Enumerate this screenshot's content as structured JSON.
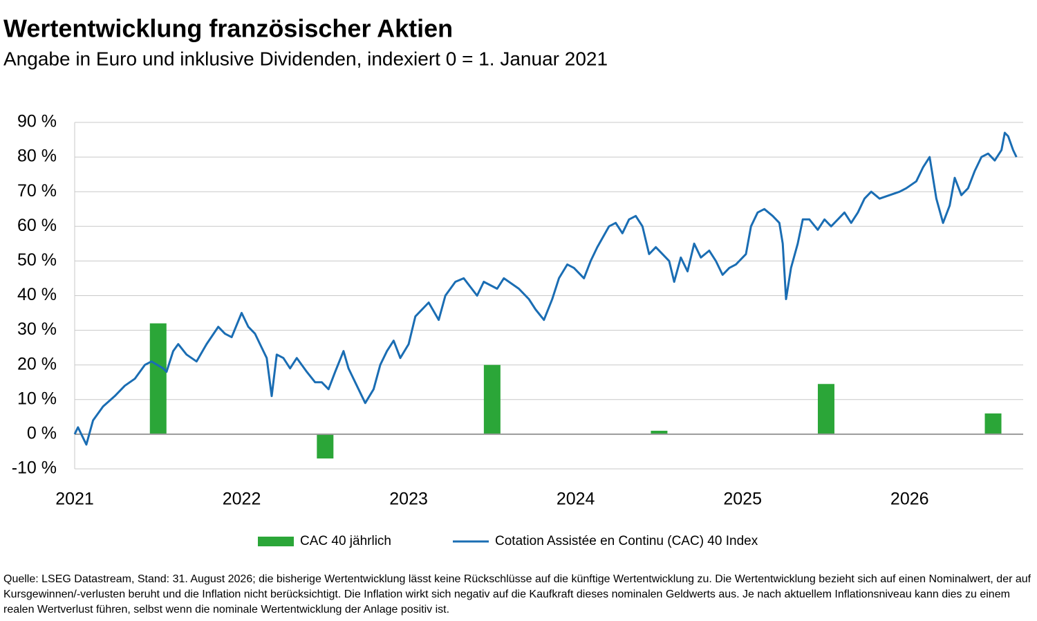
{
  "chart_data": {
    "type": "combo",
    "title": "Wertentwicklung französischer Aktien",
    "subtitle": "Angabe in Euro und inklusive Dividenden, indexiert 0 = 1. Januar 2021",
    "xlim": [
      2021,
      2026.68
    ],
    "xticks": [
      2021,
      2022,
      2023,
      2024,
      2025,
      2026
    ],
    "ylim": [
      -10,
      90
    ],
    "yticks": [
      {
        "value": -10,
        "label": "-10 %"
      },
      {
        "value": 0,
        "label": "0 %"
      },
      {
        "value": 10,
        "label": "10 %"
      },
      {
        "value": 20,
        "label": "20 %"
      },
      {
        "value": 30,
        "label": "30 %"
      },
      {
        "value": 40,
        "label": "40 %"
      },
      {
        "value": 50,
        "label": "50 %"
      },
      {
        "value": 60,
        "label": "60 %"
      },
      {
        "value": 70,
        "label": "70 %"
      },
      {
        "value": 80,
        "label": "80 %"
      },
      {
        "value": 90,
        "label": "90 %"
      }
    ],
    "grid": true,
    "series": [
      {
        "name": "CAC 40 jährlich",
        "type": "bar",
        "color": "#2ba638",
        "x": [
          2021.5,
          2022.5,
          2023.5,
          2024.5,
          2025.5,
          2026.5
        ],
        "values": [
          32,
          -7,
          20,
          1,
          14.5,
          6
        ]
      },
      {
        "name": "Cotation Assistée en Continu (CAC) 40 Index",
        "type": "line",
        "color": "#1a6db3",
        "x": [
          2021.0,
          2021.02,
          2021.07,
          2021.11,
          2021.17,
          2021.24,
          2021.3,
          2021.36,
          2021.42,
          2021.46,
          2021.53,
          2021.55,
          2021.59,
          2021.62,
          2021.67,
          2021.73,
          2021.79,
          2021.86,
          2021.9,
          2021.94,
          2022.0,
          2022.04,
          2022.08,
          2022.12,
          2022.15,
          2022.18,
          2022.21,
          2022.25,
          2022.29,
          2022.33,
          2022.39,
          2022.44,
          2022.48,
          2022.52,
          2022.56,
          2022.61,
          2022.64,
          2022.68,
          2022.74,
          2022.79,
          2022.83,
          2022.87,
          2022.91,
          2022.95,
          2023.0,
          2023.04,
          2023.12,
          2023.18,
          2023.22,
          2023.28,
          2023.33,
          2023.41,
          2023.45,
          2023.53,
          2023.57,
          2023.66,
          2023.72,
          2023.76,
          2023.81,
          2023.86,
          2023.9,
          2023.95,
          2023.99,
          2024.05,
          2024.09,
          2024.13,
          2024.2,
          2024.24,
          2024.28,
          2024.32,
          2024.36,
          2024.4,
          2024.44,
          2024.48,
          2024.52,
          2024.56,
          2024.59,
          2024.63,
          2024.67,
          2024.71,
          2024.75,
          2024.8,
          2024.84,
          2024.88,
          2024.92,
          2024.96,
          2025.02,
          2025.05,
          2025.09,
          2025.13,
          2025.18,
          2025.22,
          2025.24,
          2025.26,
          2025.29,
          2025.33,
          2025.36,
          2025.4,
          2025.45,
          2025.49,
          2025.53,
          2025.57,
          2025.61,
          2025.65,
          2025.69,
          2025.73,
          2025.77,
          2025.82,
          2025.88,
          2025.94,
          2025.98,
          2026.04,
          2026.08,
          2026.12,
          2026.16,
          2026.2,
          2026.24,
          2026.27,
          2026.31,
          2026.35,
          2026.39,
          2026.43,
          2026.47,
          2026.51,
          2026.55,
          2026.57,
          2026.59,
          2026.62,
          2026.64
        ],
        "values": [
          0,
          2,
          -3,
          4,
          8,
          11,
          14,
          16,
          20,
          21,
          19,
          18,
          24,
          26,
          23,
          21,
          26,
          31,
          29,
          28,
          35,
          31,
          29,
          25,
          22,
          11,
          23,
          22,
          19,
          22,
          18,
          15,
          15,
          13,
          18,
          24,
          19,
          15,
          9,
          13,
          20,
          24,
          27,
          22,
          26,
          34,
          38,
          33,
          40,
          44,
          45,
          40,
          44,
          42,
          45,
          42,
          39,
          36,
          33,
          39,
          45,
          49,
          48,
          45,
          50,
          54,
          60,
          61,
          58,
          62,
          63,
          60,
          52,
          54,
          52,
          50,
          44,
          51,
          47,
          55,
          51,
          53,
          50,
          46,
          48,
          49,
          52,
          60,
          64,
          65,
          63,
          61,
          55,
          39,
          48,
          55,
          62,
          62,
          59,
          62,
          60,
          62,
          64,
          61,
          64,
          68,
          70,
          68,
          69,
          70,
          71,
          73,
          77,
          80,
          68,
          61,
          66,
          74,
          69,
          71,
          76,
          80,
          81,
          79,
          82,
          87,
          86,
          82,
          80
        ]
      }
    ],
    "source": "Quelle: LSEG Datastream, Stand: 31. August 2026; die bisherige Wertentwicklung lässt keine Rückschlüsse auf die künftige Wertentwicklung zu. Die Wertentwicklung bezieht sich auf einen Nominalwert, der auf Kursgewinnen/-verlusten beruht und die Inflation nicht berücksichtigt. Die Inflation wirkt sich negativ auf die Kaufkraft dieses nominalen Geldwerts aus. Je nach aktuellem Inflationsniveau kann dies zu einem realen Wertverlust führen, selbst wenn die nominale Wertentwicklung der Anlage positiv ist."
  }
}
